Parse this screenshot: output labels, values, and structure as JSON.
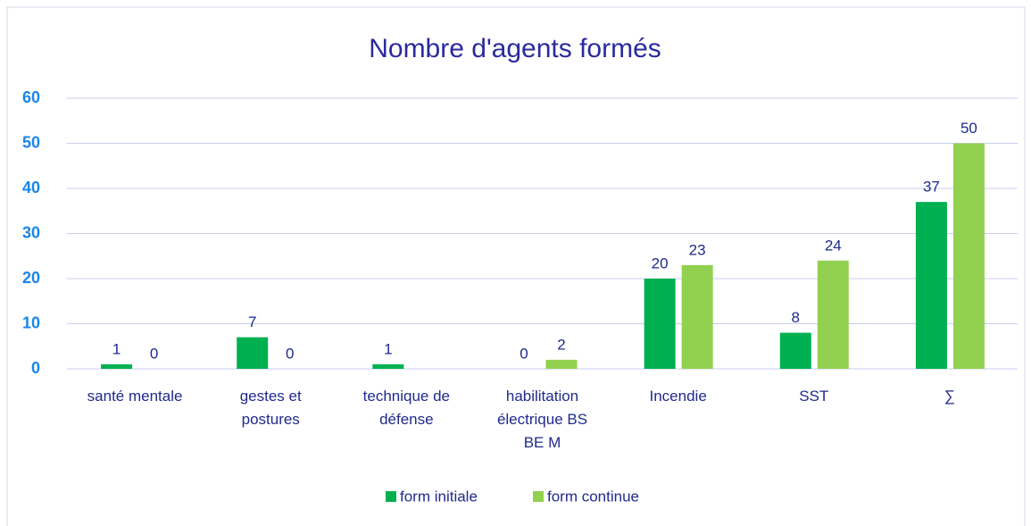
{
  "chart_data": {
    "type": "bar",
    "title": "Nombre d'agents formés",
    "categories": [
      "santé mentale",
      "gestes et postures",
      "technique de défense",
      "habilitation électrique BS BE M",
      "Incendie",
      "SST",
      "∑"
    ],
    "series": [
      {
        "name": "form initiale",
        "color": "#00b050",
        "values": [
          1,
          7,
          1,
          0,
          20,
          8,
          37
        ]
      },
      {
        "name": "form continue",
        "color": "#92d050",
        "values": [
          0,
          0,
          null,
          2,
          23,
          24,
          50
        ]
      }
    ],
    "ylim": [
      0,
      60
    ],
    "yticks": [
      0,
      10,
      20,
      30,
      40,
      50,
      60
    ],
    "grid": true,
    "legend": "bottom"
  }
}
